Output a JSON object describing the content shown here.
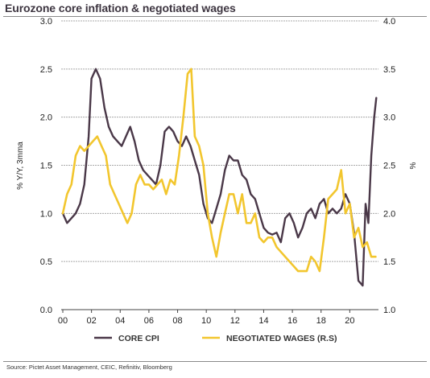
{
  "title": "Eurozone core inflation & negotiated wages",
  "source": "Source: Pictet Asset Management, CEIC, Refinitiv, Bloomberg",
  "chart_data": {
    "type": "line",
    "xlabel": "",
    "ylabel": "% Y/Y, 3mma",
    "y2label": "%",
    "xlim": [
      2000,
      2022
    ],
    "ylim": [
      0.0,
      3.0
    ],
    "y2lim": [
      1.0,
      4.0
    ],
    "xticks": [
      "00",
      "02",
      "04",
      "06",
      "08",
      "10",
      "12",
      "14",
      "16",
      "18",
      "20"
    ],
    "xtick_values": [
      2000,
      2002,
      2004,
      2006,
      2008,
      2010,
      2012,
      2014,
      2016,
      2018,
      2020
    ],
    "yticks": [
      "0.0",
      "0.5",
      "1.0",
      "1.5",
      "2.0",
      "2.5",
      "3.0"
    ],
    "y2ticks": [
      "1.0",
      "1.5",
      "2.0",
      "2.5",
      "3.0",
      "3.5",
      "4.0"
    ],
    "grid": "horizontal",
    "legend_position": "bottom",
    "series": [
      {
        "name": "CORE CPI",
        "axis": "left",
        "color": "#4a3848",
        "x": [
          2000.0,
          2000.3,
          2000.6,
          2000.9,
          2001.2,
          2001.5,
          2001.8,
          2002.0,
          2002.3,
          2002.6,
          2002.9,
          2003.2,
          2003.5,
          2003.8,
          2004.1,
          2004.4,
          2004.7,
          2005.0,
          2005.3,
          2005.6,
          2005.9,
          2006.2,
          2006.5,
          2006.8,
          2007.1,
          2007.4,
          2007.7,
          2008.0,
          2008.3,
          2008.6,
          2008.9,
          2009.2,
          2009.5,
          2009.8,
          2010.1,
          2010.4,
          2010.7,
          2011.0,
          2011.3,
          2011.6,
          2011.9,
          2012.2,
          2012.5,
          2012.8,
          2013.1,
          2013.4,
          2013.7,
          2014.0,
          2014.3,
          2014.6,
          2014.9,
          2015.2,
          2015.5,
          2015.8,
          2016.1,
          2016.4,
          2016.7,
          2017.0,
          2017.3,
          2017.6,
          2017.9,
          2018.2,
          2018.5,
          2018.8,
          2019.1,
          2019.4,
          2019.7,
          2020.0,
          2020.3,
          2020.6,
          2020.9,
          2021.1,
          2021.3,
          2021.5,
          2021.7,
          2021.85
        ],
        "values": [
          1.0,
          0.9,
          0.95,
          1.0,
          1.1,
          1.3,
          1.8,
          2.4,
          2.5,
          2.4,
          2.1,
          1.9,
          1.8,
          1.75,
          1.7,
          1.8,
          1.9,
          1.75,
          1.55,
          1.45,
          1.4,
          1.35,
          1.3,
          1.5,
          1.85,
          1.9,
          1.85,
          1.75,
          1.7,
          1.8,
          1.7,
          1.55,
          1.4,
          1.1,
          0.95,
          0.9,
          1.05,
          1.2,
          1.45,
          1.6,
          1.55,
          1.55,
          1.4,
          1.35,
          1.2,
          1.15,
          1.0,
          0.85,
          0.8,
          0.78,
          0.8,
          0.7,
          0.95,
          1.0,
          0.9,
          0.75,
          0.85,
          1.0,
          1.05,
          0.95,
          1.1,
          1.15,
          1.0,
          1.05,
          1.0,
          1.05,
          1.2,
          1.1,
          0.8,
          0.3,
          0.25,
          1.1,
          0.9,
          1.6,
          2.0,
          2.2
        ]
      },
      {
        "name": "NEGOTIATED WAGES (R.S)",
        "axis": "right",
        "color": "#f2c62e",
        "x": [
          2000.0,
          2000.3,
          2000.6,
          2000.9,
          2001.2,
          2001.5,
          2001.8,
          2002.1,
          2002.4,
          2002.7,
          2003.0,
          2003.3,
          2003.6,
          2003.9,
          2004.2,
          2004.5,
          2004.8,
          2005.1,
          2005.4,
          2005.7,
          2006.0,
          2006.3,
          2006.6,
          2006.9,
          2007.2,
          2007.5,
          2007.8,
          2008.1,
          2008.4,
          2008.7,
          2008.95,
          2009.2,
          2009.5,
          2009.8,
          2010.1,
          2010.4,
          2010.7,
          2011.0,
          2011.3,
          2011.6,
          2011.9,
          2012.2,
          2012.5,
          2012.8,
          2013.1,
          2013.4,
          2013.7,
          2014.0,
          2014.3,
          2014.6,
          2014.9,
          2015.2,
          2015.5,
          2015.8,
          2016.1,
          2016.4,
          2016.7,
          2017.0,
          2017.3,
          2017.6,
          2017.9,
          2018.2,
          2018.5,
          2018.8,
          2019.1,
          2019.4,
          2019.7,
          2020.0,
          2020.3,
          2020.6,
          2020.9,
          2021.2,
          2021.5,
          2021.8
        ],
        "values": [
          2.0,
          2.2,
          2.3,
          2.6,
          2.7,
          2.65,
          2.7,
          2.75,
          2.8,
          2.7,
          2.6,
          2.3,
          2.2,
          2.1,
          2.0,
          1.9,
          2.0,
          2.3,
          2.4,
          2.3,
          2.3,
          2.25,
          2.3,
          2.35,
          2.2,
          2.35,
          2.3,
          2.6,
          3.0,
          3.45,
          3.5,
          2.8,
          2.7,
          2.5,
          2.0,
          1.75,
          1.55,
          1.8,
          2.0,
          2.2,
          2.2,
          2.0,
          2.2,
          1.9,
          1.9,
          2.0,
          1.75,
          1.7,
          1.75,
          1.75,
          1.65,
          1.6,
          1.55,
          1.5,
          1.45,
          1.4,
          1.4,
          1.4,
          1.55,
          1.5,
          1.4,
          1.75,
          2.15,
          2.2,
          2.25,
          2.45,
          2.0,
          2.1,
          1.75,
          1.85,
          1.65,
          1.7,
          1.55,
          1.55
        ]
      }
    ]
  }
}
